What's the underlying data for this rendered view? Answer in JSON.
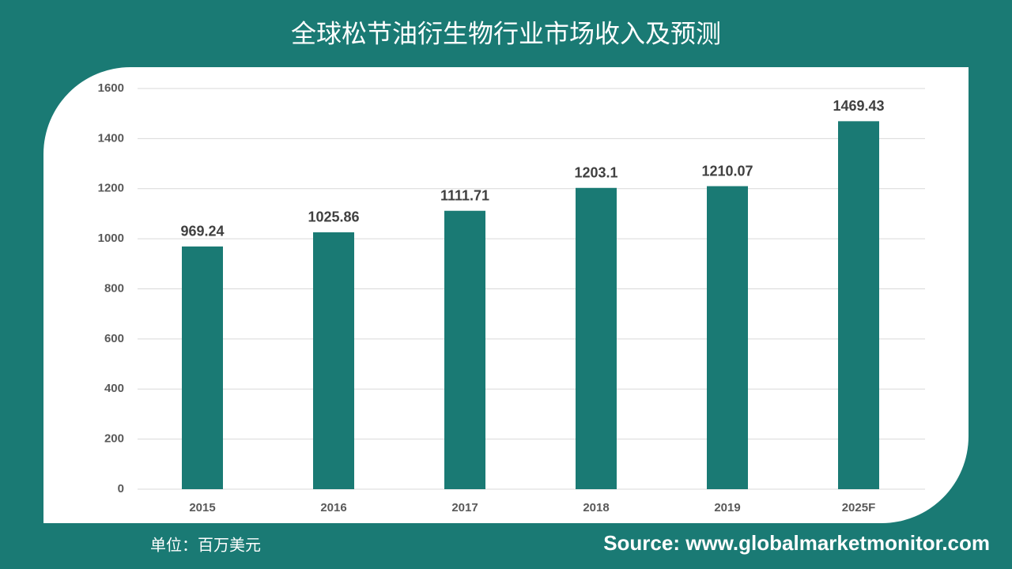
{
  "chart_data": {
    "type": "bar",
    "title": "全球松节油衍生物行业市场收入及预测",
    "categories": [
      "2015",
      "2016",
      "2017",
      "2018",
      "2019",
      "2025F"
    ],
    "values": [
      969.24,
      1025.86,
      1111.71,
      1203.1,
      1210.07,
      1469.43
    ],
    "color": "#1a7a74",
    "ylim": [
      0,
      1600
    ],
    "yticks": [
      0,
      200,
      400,
      600,
      800,
      1000,
      1200,
      1400,
      1600
    ],
    "grid": true,
    "unit_note": "单位：百万美元",
    "source": "Source: www.globalmarketmonitor.com"
  }
}
